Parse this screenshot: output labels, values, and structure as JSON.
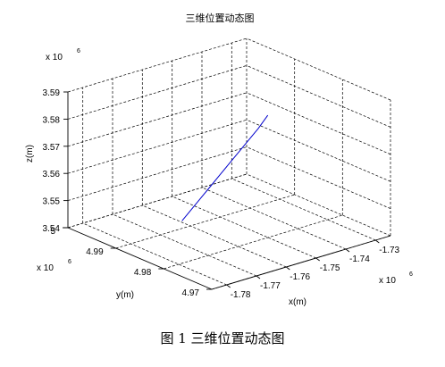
{
  "chart_data": {
    "type": "line3d",
    "title": "三维位置动态图",
    "xlabel": "x(m)",
    "ylabel": "y(m)",
    "zlabel": "z(m)",
    "x_exponent": "x 10",
    "x_exponent_power": "6",
    "y_exponent": "x 10",
    "y_exponent_power": "6",
    "z_exponent": "x 10",
    "z_exponent_power": "6",
    "xlim": [
      -1.785,
      -1.725
    ],
    "ylim": [
      4.97,
      5.0
    ],
    "zlim": [
      3.54,
      3.59
    ],
    "xticks": [
      "-1.78",
      "-1.77",
      "-1.76",
      "-1.75",
      "-1.74",
      "-1.73"
    ],
    "xtick_values": [
      -1.78,
      -1.77,
      -1.76,
      -1.75,
      -1.74,
      -1.73
    ],
    "yticks": [
      "4.97",
      "4.98",
      "4.99",
      "5"
    ],
    "ytick_values": [
      4.97,
      4.98,
      4.99,
      5.0
    ],
    "zticks": [
      "3.54",
      "3.55",
      "3.56",
      "3.57",
      "3.58",
      "3.59"
    ],
    "ztick_values": [
      3.54,
      3.55,
      3.56,
      3.57,
      3.58,
      3.59
    ],
    "grid": true,
    "series": [
      {
        "color": "#0000cc",
        "x": [
          -1.7628,
          -1.7596,
          -1.7564,
          -1.7532,
          -1.75,
          -1.7468,
          -1.7436,
          -1.7404,
          -1.7372,
          -1.734
        ],
        "y": [
          4.99,
          4.99,
          4.99,
          4.99,
          4.99,
          4.99,
          4.99,
          4.99,
          4.99,
          4.99
        ],
        "z": [
          3.5428,
          3.546,
          3.5492,
          3.5524,
          3.5556,
          3.5588,
          3.562,
          3.5652,
          3.5684,
          3.5722
        ]
      }
    ]
  },
  "caption": "图 1  三维位置动态图"
}
